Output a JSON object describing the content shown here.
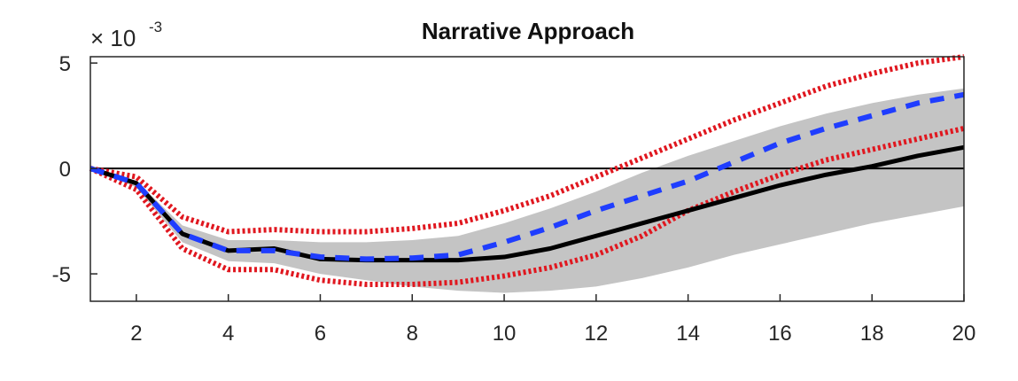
{
  "chart_data": {
    "type": "line",
    "title": "Narrative Approach",
    "xlabel": "",
    "ylabel": "",
    "y_multiplier": {
      "base": "× 10",
      "exponent": "-3"
    },
    "xlim": [
      1,
      20
    ],
    "ylim": [
      -6.3,
      5.3
    ],
    "x_ticks": [
      "2",
      "4",
      "6",
      "8",
      "10",
      "12",
      "14",
      "16",
      "18",
      "20"
    ],
    "y_ticks": [
      "5",
      "0",
      "-5"
    ],
    "grid": false,
    "zero_line": true,
    "x": [
      1,
      2,
      3,
      4,
      5,
      6,
      7,
      8,
      9,
      10,
      11,
      12,
      13,
      14,
      15,
      16,
      17,
      18,
      19,
      20
    ],
    "series": [
      {
        "style": "solid",
        "color": "#000000",
        "values": [
          0,
          -0.7,
          -3.1,
          -3.9,
          -3.8,
          -4.3,
          -4.35,
          -4.35,
          -4.35,
          -4.2,
          -3.8,
          -3.2,
          -2.6,
          -2.0,
          -1.4,
          -0.8,
          -0.3,
          0.1,
          0.6,
          1.0
        ]
      },
      {
        "style": "dashed",
        "color": "#1f3dff",
        "values": [
          0,
          -0.7,
          -3.1,
          -3.9,
          -3.9,
          -4.2,
          -4.3,
          -4.25,
          -4.1,
          -3.5,
          -2.8,
          -2.0,
          -1.3,
          -0.6,
          0.3,
          1.2,
          1.9,
          2.5,
          3.1,
          3.5
        ]
      },
      {
        "style": "dotted",
        "color": "#e0171f",
        "values": [
          0,
          -0.4,
          -2.3,
          -3.0,
          -2.9,
          -3.0,
          -3.0,
          -2.85,
          -2.6,
          -2.0,
          -1.3,
          -0.4,
          0.5,
          1.4,
          2.3,
          3.1,
          3.9,
          4.5,
          5.0,
          5.3
        ]
      },
      {
        "style": "dotted",
        "color": "#e0171f",
        "values": [
          0,
          -1.0,
          -3.8,
          -4.8,
          -4.8,
          -5.3,
          -5.5,
          -5.5,
          -5.4,
          -5.1,
          -4.7,
          -4.1,
          -3.2,
          -2.0,
          -1.1,
          -0.3,
          0.4,
          0.9,
          1.4,
          1.9
        ]
      }
    ],
    "band": {
      "color": "#c4c4c4",
      "upper": [
        0,
        -0.6,
        -2.7,
        -3.4,
        -3.4,
        -3.5,
        -3.5,
        -3.4,
        -3.2,
        -2.6,
        -1.9,
        -1.1,
        -0.2,
        0.6,
        1.3,
        2.0,
        2.6,
        3.1,
        3.5,
        3.8
      ],
      "lower": [
        0,
        -0.9,
        -3.5,
        -4.4,
        -4.5,
        -5.0,
        -5.3,
        -5.6,
        -5.8,
        -5.9,
        -5.8,
        -5.6,
        -5.2,
        -4.7,
        -4.1,
        -3.6,
        -3.1,
        -2.6,
        -2.2,
        -1.8
      ]
    }
  }
}
